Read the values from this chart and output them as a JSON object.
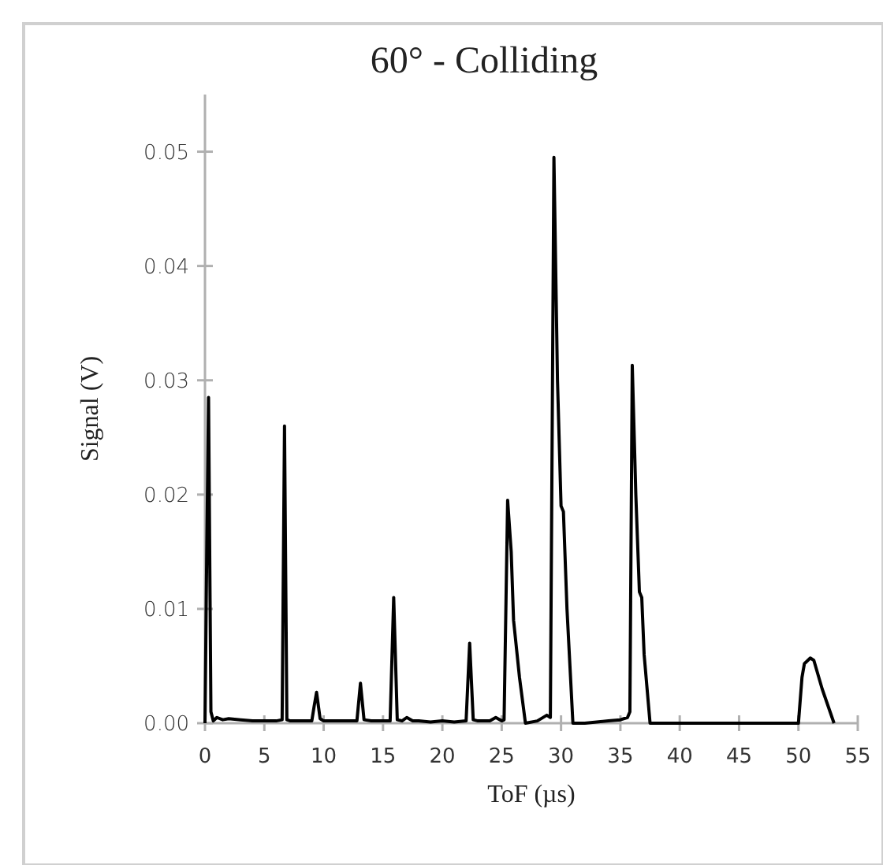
{
  "chart_data": {
    "type": "line",
    "title": "60° - Colliding",
    "xlabel": "ToF (µs)",
    "ylabel": "Signal  (V)",
    "xlim": [
      0,
      55
    ],
    "xticks": [
      0,
      5,
      10,
      15,
      20,
      25,
      30,
      35,
      40,
      45,
      50,
      55
    ],
    "ylim": [
      0,
      0.055
    ],
    "yticks": [
      {
        "value": 0,
        "label": "0.00"
      },
      {
        "value": 0.01,
        "label": "0.01"
      },
      {
        "value": 0.02,
        "label": "0.02"
      },
      {
        "value": 0.03,
        "label": "0.03"
      },
      {
        "value": 0.04,
        "label": "0.04"
      },
      {
        "value": 0.05,
        "label": "0.05"
      }
    ],
    "marker": "none",
    "line_style": "solid",
    "series": [
      {
        "color": "#000000",
        "x": [
          0,
          0.15,
          0.3,
          0.5,
          0.7,
          1,
          1.5,
          2,
          3,
          4,
          5,
          6,
          6.5,
          6.7,
          6.9,
          7.2,
          8,
          9,
          9.2,
          9.4,
          9.7,
          10,
          11,
          12,
          12.8,
          13.1,
          13.4,
          14,
          15,
          15.6,
          15.9,
          16.2,
          16.6,
          17,
          17.5,
          18,
          19,
          20,
          21,
          22,
          22.3,
          22.6,
          23,
          24,
          24.5,
          25,
          25.2,
          25.5,
          25.8,
          26,
          26.5,
          27,
          28,
          28.8,
          29.1,
          29.4,
          29.7,
          30,
          30.2,
          30.5,
          31,
          32,
          33,
          34,
          35,
          35.6,
          35.8,
          36,
          36.3,
          36.6,
          36.8,
          37,
          37.5,
          38,
          40,
          45,
          50,
          50.3,
          50.5,
          51,
          51.3,
          52,
          53
        ],
        "values": [
          0,
          0.015,
          0.0285,
          0.001,
          0.0002,
          0.0005,
          0.0003,
          0.0004,
          0.0003,
          0.0002,
          0.0002,
          0.0002,
          0.0003,
          0.026,
          0.0003,
          0.0002,
          0.0002,
          0.0002,
          0.0015,
          0.0027,
          0.0004,
          0.0002,
          0.0002,
          0.0002,
          0.0002,
          0.0035,
          0.0003,
          0.0002,
          0.0002,
          0.0002,
          0.011,
          0.0003,
          0.0002,
          0.0005,
          0.0002,
          0.0002,
          0.0001,
          0.0002,
          0.0001,
          0.0002,
          0.007,
          0.0003,
          0.0002,
          0.0002,
          0.0005,
          0.0002,
          0.0003,
          0.0195,
          0.015,
          0.009,
          0.004,
          0,
          0.0002,
          0.0007,
          0.0005,
          0.0495,
          0.03,
          0.019,
          0.0185,
          0.01,
          0,
          0,
          0.0001,
          0.0002,
          0.0003,
          0.0005,
          0.001,
          0.0313,
          0.02,
          0.0115,
          0.011,
          0.006,
          0,
          0,
          0,
          0,
          0,
          0.004,
          0.0052,
          0.0057,
          0.0055,
          0.003,
          0
        ]
      }
    ]
  }
}
